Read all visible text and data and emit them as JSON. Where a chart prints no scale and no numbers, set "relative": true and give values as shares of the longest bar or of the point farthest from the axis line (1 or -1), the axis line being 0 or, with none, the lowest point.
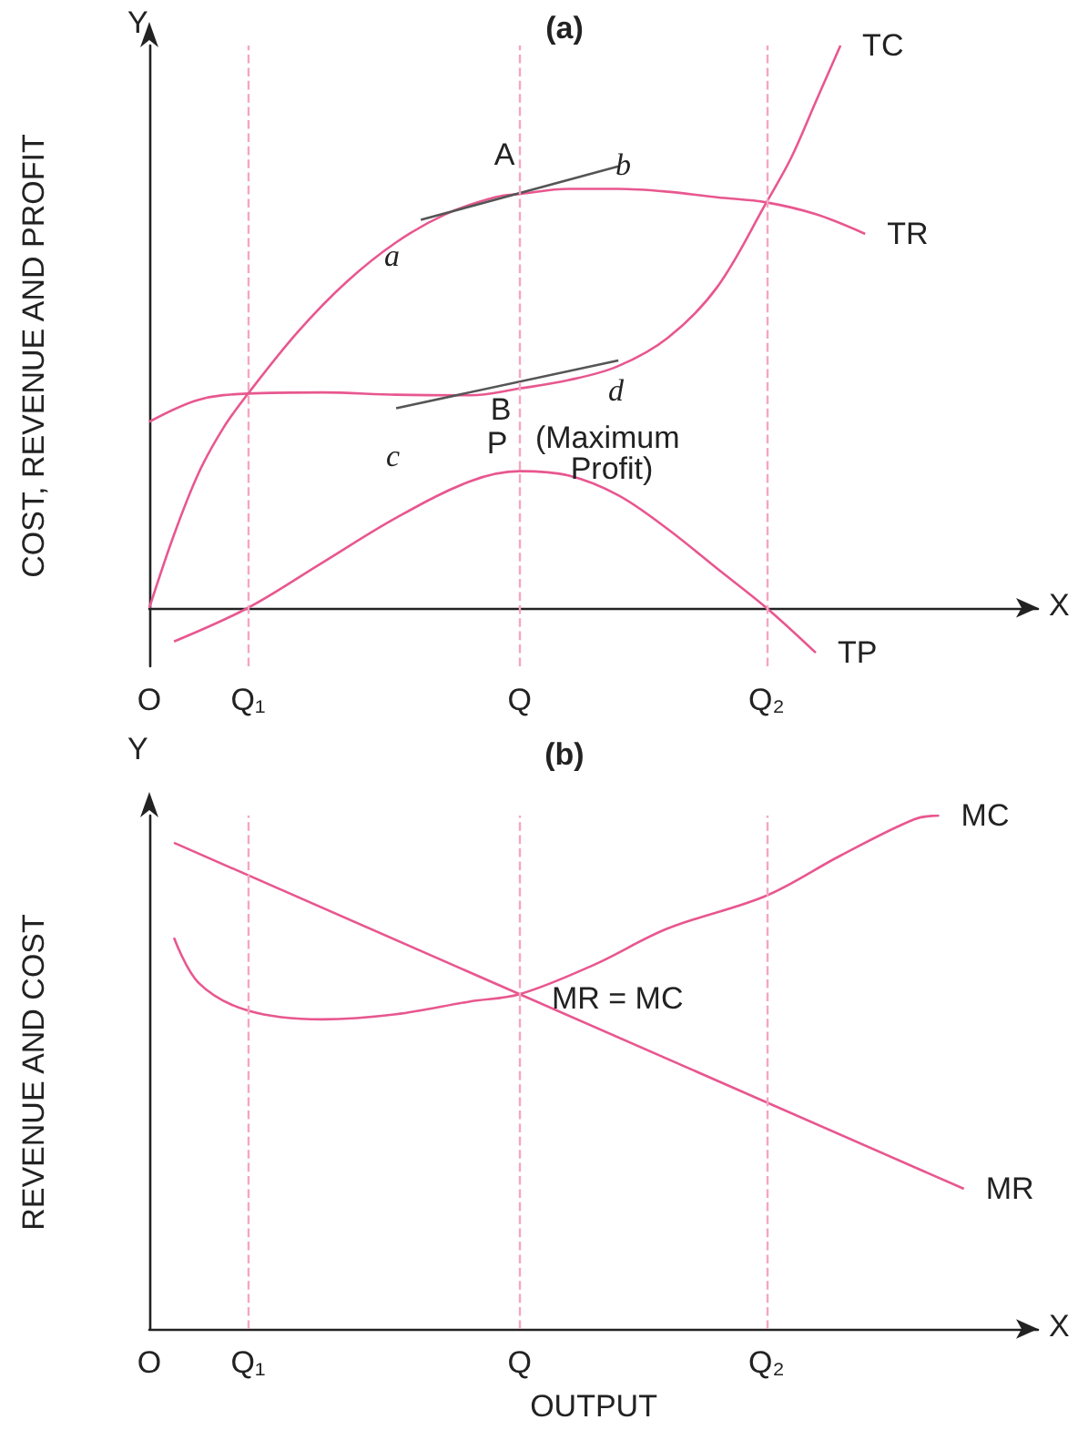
{
  "chart_data": [
    {
      "type": "line",
      "title": "(a)",
      "ylabel": "COST, REVENUE AND PROFIT",
      "relative": true,
      "legend": false,
      "grid": false,
      "marker": "none",
      "categories": [
        "O",
        null,
        null,
        null,
        "Q₁",
        null,
        null,
        null,
        null,
        null,
        null,
        null,
        null,
        null,
        null,
        "Q",
        null,
        null,
        null,
        null,
        null,
        null,
        null,
        null,
        null,
        "Q₂",
        null,
        null,
        null,
        null,
        null,
        null,
        null,
        null,
        null,
        null,
        null
      ],
      "series": [
        {
          "name": "TC",
          "color": "#e8578f",
          "values": [
            0.331,
            null,
            0.37,
            null,
            0.381,
            null,
            null,
            0.383,
            null,
            null,
            0.379,
            null,
            null,
            0.378,
            null,
            0.39,
            null,
            0.405,
            null,
            0.43,
            null,
            0.48,
            null,
            0.57,
            null,
            0.721,
            0.8,
            0.9,
            1,
            null,
            null,
            null,
            null,
            null,
            null,
            null,
            null
          ]
        },
        {
          "name": "TR",
          "color": "#e8578f",
          "values": [
            0,
            0.13,
            0.24,
            0.32,
            0.381,
            null,
            0.49,
            null,
            0.58,
            null,
            0.65,
            null,
            0.7,
            null,
            0.73,
            0.736,
            null,
            0.745,
            null,
            0.745,
            null,
            0.74,
            null,
            0.73,
            null,
            0.721,
            null,
            0.7,
            null,
            0.665,
            null,
            null,
            null,
            null,
            null,
            null,
            null
          ]
        },
        {
          "name": "TP",
          "color": "#e8578f",
          "values": [
            null,
            -0.06,
            null,
            null,
            0,
            null,
            null,
            0.08,
            null,
            null,
            0.16,
            null,
            null,
            0.225,
            null,
            0.243,
            null,
            0.235,
            null,
            0.2,
            null,
            0.14,
            null,
            0.07,
            null,
            0,
            null,
            -0.08,
            null,
            null,
            null,
            null,
            null,
            null,
            null,
            null,
            null
          ]
        },
        {
          "color": "#555555",
          "values": [
            null,
            null,
            null,
            null,
            null,
            null,
            null,
            null,
            null,
            null,
            null,
            0.69,
            null,
            null,
            null,
            null,
            null,
            null,
            null,
            0.785,
            null,
            null,
            null,
            null,
            null,
            null,
            null,
            null,
            null,
            null,
            null,
            null,
            null,
            null,
            null,
            null,
            null
          ]
        },
        {
          "color": "#555555",
          "values": [
            null,
            null,
            null,
            null,
            null,
            null,
            null,
            null,
            null,
            null,
            0.355,
            null,
            null,
            null,
            null,
            null,
            null,
            null,
            null,
            0.44,
            null,
            null,
            null,
            null,
            null,
            null,
            null,
            null,
            null,
            null,
            null,
            null,
            null,
            null,
            null,
            null,
            null
          ]
        }
      ],
      "ref_lines": [
        {
          "axis": "x",
          "value": "Q₁",
          "color": "#f4a6c0",
          "line_style": "dashed"
        },
        {
          "axis": "x",
          "value": "Q",
          "color": "#f4a6c0",
          "line_style": "dashed"
        },
        {
          "axis": "x",
          "value": "Q₂",
          "color": "#f4a6c0",
          "line_style": "dashed"
        }
      ],
      "annotations": [
        "Y",
        "X",
        {
          "text": "A",
          "x": "Q",
          "y": 0.736
        },
        {
          "text": "B",
          "x": "Q",
          "y": 0.39
        },
        {
          "text": "P",
          "x": "Q",
          "y": 0.243
        },
        "(Maximum Profit)",
        "a",
        "b",
        "c",
        "d"
      ]
    },
    {
      "type": "line",
      "title": "(b)",
      "xlabel": "OUTPUT",
      "ylabel": "REVENUE AND COST",
      "relative": true,
      "legend": false,
      "grid": false,
      "marker": "none",
      "categories": [
        "O",
        null,
        null,
        null,
        "Q₁",
        null,
        null,
        null,
        null,
        null,
        null,
        null,
        null,
        null,
        null,
        "Q",
        null,
        null,
        null,
        null,
        null,
        null,
        null,
        null,
        null,
        "Q₂",
        null,
        null,
        null,
        null,
        null,
        null,
        null,
        null,
        null,
        null,
        null
      ],
      "series": [
        {
          "name": "MC",
          "color": "#e8578f",
          "values": [
            null,
            0.762,
            0.674,
            null,
            0.62,
            null,
            null,
            0.603,
            null,
            null,
            0.613,
            null,
            null,
            0.638,
            null,
            0.652,
            null,
            null,
            0.709,
            null,
            null,
            0.78,
            null,
            null,
            null,
            0.844,
            null,
            null,
            0.922,
            null,
            null,
            0.993,
            1,
            null,
            null,
            null,
            null
          ]
        },
        {
          "name": "MR",
          "color": "#e8578f",
          "values": [
            null,
            0.947,
            null,
            null,
            null,
            null,
            null,
            null,
            null,
            null,
            null,
            null,
            null,
            null,
            null,
            null,
            null,
            null,
            null,
            null,
            null,
            null,
            null,
            null,
            null,
            null,
            null,
            null,
            null,
            null,
            null,
            null,
            null,
            0.273,
            null,
            null,
            null
          ]
        }
      ],
      "ref_lines": [
        {
          "axis": "x",
          "value": "Q₁",
          "color": "#f4a6c0",
          "line_style": "dashed"
        },
        {
          "axis": "x",
          "value": "Q",
          "color": "#f4a6c0",
          "line_style": "dashed"
        },
        {
          "axis": "x",
          "value": "Q₂",
          "color": "#f4a6c0",
          "line_style": "dashed"
        }
      ],
      "annotations": [
        "Y",
        "X",
        "MR = MC"
      ]
    }
  ]
}
